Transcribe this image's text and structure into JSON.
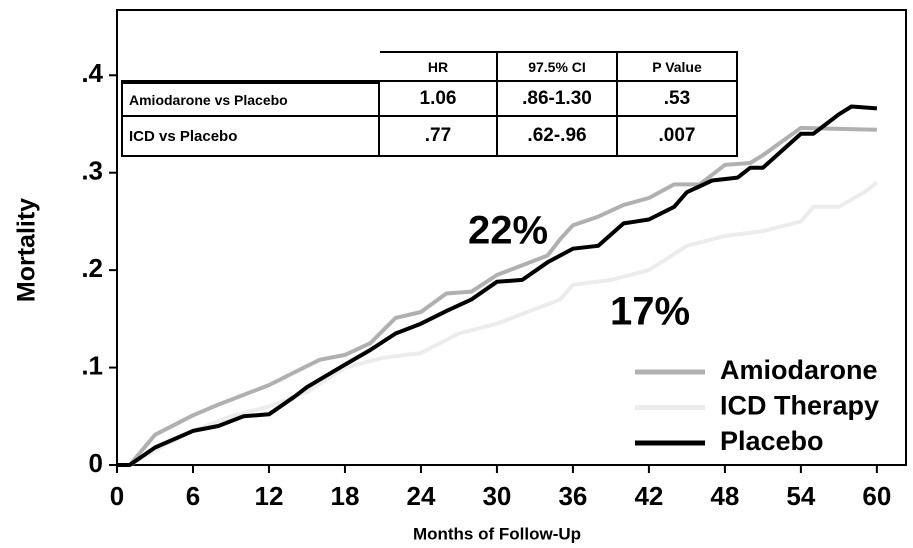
{
  "chart_data": {
    "type": "line",
    "xlabel": "Months of Follow-Up",
    "ylabel": "Mortality",
    "xlim": [
      0,
      62.3
    ],
    "ylim": [
      0,
      0.467
    ],
    "xticks": [
      0,
      6,
      12,
      18,
      24,
      30,
      36,
      42,
      48,
      54,
      60
    ],
    "yticks": [
      0,
      {
        "value": 0.1,
        "label": ".1"
      },
      {
        "value": 0.2,
        "label": ".2"
      },
      {
        "value": 0.3,
        "label": ".3"
      },
      {
        "value": 0.4,
        "label": ".4"
      }
    ],
    "series": [
      {
        "name": "Amiodarone",
        "color": "#b0b0b0",
        "x": [
          0,
          1,
          3,
          6,
          8,
          10,
          12,
          14,
          16,
          18,
          20,
          22,
          24,
          26,
          28,
          30,
          32,
          34,
          35,
          36,
          38,
          40,
          42,
          44,
          46,
          48,
          50,
          51,
          54,
          57,
          60
        ],
        "values": [
          0,
          0,
          0.031,
          0.051,
          0.062,
          0.072,
          0.082,
          0.095,
          0.108,
          0.113,
          0.125,
          0.151,
          0.157,
          0.176,
          0.178,
          0.195,
          0.205,
          0.215,
          0.232,
          0.246,
          0.255,
          0.267,
          0.274,
          0.288,
          0.288,
          0.308,
          0.31,
          0.318,
          0.346,
          0.345,
          0.344
        ]
      },
      {
        "name": "ICD Therapy",
        "color": "#ececec",
        "x": [
          0,
          1,
          3,
          6,
          9,
          12,
          15,
          18,
          21,
          24,
          27,
          30,
          33,
          35,
          36,
          39,
          42,
          45,
          48,
          51,
          54,
          55,
          57,
          59,
          60
        ],
        "values": [
          0,
          0,
          0.015,
          0.035,
          0.05,
          0.06,
          0.075,
          0.1,
          0.11,
          0.115,
          0.135,
          0.145,
          0.16,
          0.17,
          0.185,
          0.19,
          0.2,
          0.225,
          0.235,
          0.24,
          0.25,
          0.265,
          0.265,
          0.28,
          0.29
        ]
      },
      {
        "name": "Placebo",
        "color": "#000000",
        "x": [
          0,
          1,
          3,
          6,
          8,
          10,
          12,
          14,
          15,
          18,
          20,
          22,
          24,
          26,
          28,
          30,
          32,
          34,
          36,
          38,
          40,
          42,
          44,
          45,
          47,
          49,
          50,
          51,
          54,
          55,
          56,
          57,
          58,
          60
        ],
        "values": [
          0,
          0,
          0.018,
          0.035,
          0.04,
          0.05,
          0.052,
          0.07,
          0.08,
          0.103,
          0.118,
          0.135,
          0.145,
          0.158,
          0.17,
          0.188,
          0.19,
          0.208,
          0.222,
          0.225,
          0.248,
          0.252,
          0.265,
          0.28,
          0.292,
          0.295,
          0.305,
          0.305,
          0.34,
          0.34,
          0.35,
          0.36,
          0.368,
          0.366
        ]
      }
    ],
    "annotations": [
      "22%",
      "17%"
    ],
    "table": {
      "columns": [
        "HR",
        "97.5% CI",
        "P Value"
      ],
      "rows": [
        {
          "label": "Amiodarone vs Placebo",
          "cells": [
            "1.06",
            ".86-1.30",
            ".53"
          ]
        },
        {
          "label": "ICD vs Placebo",
          "cells": [
            ".77",
            ".62-.96",
            ".007"
          ]
        }
      ]
    }
  }
}
